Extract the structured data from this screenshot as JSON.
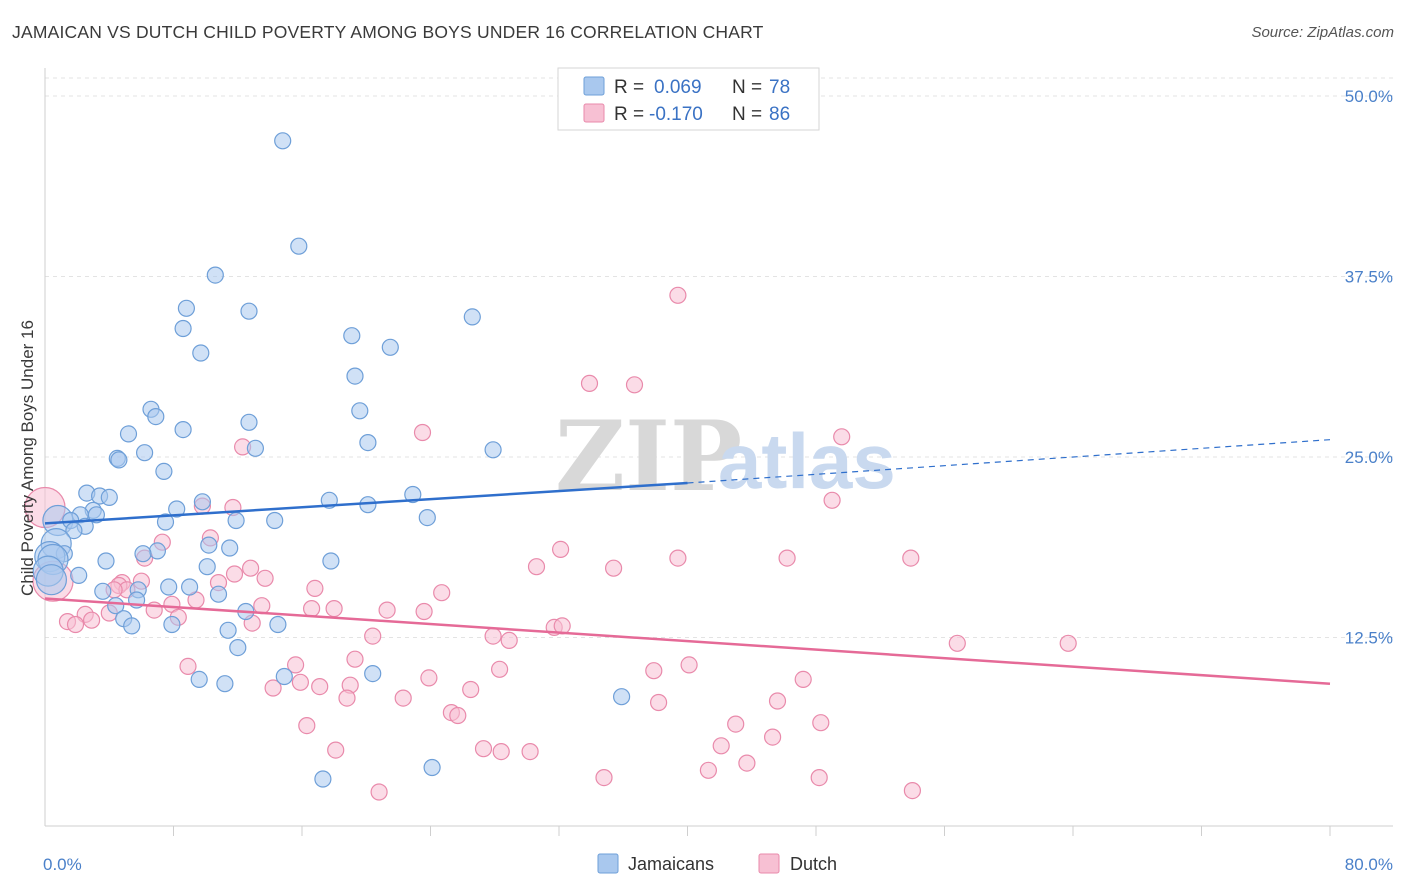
{
  "header": {
    "title": "JAMAICAN VS DUTCH CHILD POVERTY AMONG BOYS UNDER 16 CORRELATION CHART",
    "source": "Source: ZipAtlas.com"
  },
  "watermark": {
    "zip": "ZIP",
    "atlas": "atlas"
  },
  "colors": {
    "jamaicans_fill": "#a9c8ee",
    "jamaicans_stroke": "#6e9fd8",
    "jamaicans_line": "#2f6fcc",
    "dutch_fill": "#f7c0d3",
    "dutch_stroke": "#e98aab",
    "dutch_line": "#e56a97",
    "axis_label": "#4a80c9",
    "grid": "#e3e3e3"
  },
  "legend": {
    "rows": [
      {
        "r_label": "R =",
        "r_value": "0.069",
        "n_label": "N =",
        "n_value": "78"
      },
      {
        "r_label": "R =",
        "r_value": "-0.170",
        "n_label": "N =",
        "n_value": "86"
      }
    ]
  },
  "bottom_legend": {
    "items": [
      "Jamaicans",
      "Dutch"
    ]
  },
  "chart_data": {
    "type": "scatter",
    "title": "JAMAICAN VS DUTCH CHILD POVERTY AMONG BOYS UNDER 16 CORRELATION CHART",
    "xlabel": "",
    "ylabel": "Child Poverty Among Boys Under 16",
    "xlim": [
      0,
      80
    ],
    "ylim": [
      0,
      52
    ],
    "x_tick_labels": [
      "0.0%",
      "80.0%"
    ],
    "y_ticks": [
      12.5,
      25.0,
      37.5,
      50.0
    ],
    "y_tick_labels": [
      "12.5%",
      "25.0%",
      "37.5%",
      "50.0%"
    ],
    "grid": true,
    "series": [
      {
        "name": "Jamaicans",
        "r": 0.069,
        "n": 78,
        "trend": {
          "x": [
            0,
            40
          ],
          "y": [
            20.4,
            23.2
          ],
          "dashed_extension": {
            "x": [
              40,
              80
            ],
            "y": [
              23.2,
              26.2
            ]
          }
        },
        "points": [
          [
            14.8,
            46.9
          ],
          [
            15.8,
            39.6
          ],
          [
            10.6,
            37.6
          ],
          [
            8.8,
            35.3
          ],
          [
            12.7,
            35.1
          ],
          [
            8.6,
            33.9
          ],
          [
            26.6,
            34.7
          ],
          [
            19.1,
            33.4
          ],
          [
            21.5,
            32.6
          ],
          [
            9.7,
            32.2
          ],
          [
            19.3,
            30.6
          ],
          [
            6.6,
            28.3
          ],
          [
            6.9,
            27.8
          ],
          [
            19.6,
            28.2
          ],
          [
            12.7,
            27.4
          ],
          [
            8.6,
            26.9
          ],
          [
            5.2,
            26.6
          ],
          [
            20.1,
            26.0
          ],
          [
            13.1,
            25.6
          ],
          [
            6.2,
            25.3
          ],
          [
            27.9,
            25.5
          ],
          [
            4.5,
            24.9
          ],
          [
            4.6,
            24.8
          ],
          [
            7.4,
            24.0
          ],
          [
            2.6,
            22.5
          ],
          [
            3.4,
            22.3
          ],
          [
            4.0,
            22.2
          ],
          [
            22.9,
            22.4
          ],
          [
            9.8,
            21.9
          ],
          [
            17.7,
            22.0
          ],
          [
            20.1,
            21.7
          ],
          [
            8.2,
            21.4
          ],
          [
            3.0,
            21.3
          ],
          [
            2.2,
            21.0
          ],
          [
            3.2,
            21.0
          ],
          [
            0.8,
            20.6
          ],
          [
            1.6,
            20.6
          ],
          [
            2.5,
            20.2
          ],
          [
            1.8,
            19.9
          ],
          [
            11.9,
            20.6
          ],
          [
            14.3,
            20.6
          ],
          [
            23.8,
            20.8
          ],
          [
            7.5,
            20.5
          ],
          [
            0.7,
            19.0
          ],
          [
            10.2,
            18.9
          ],
          [
            11.5,
            18.7
          ],
          [
            7.0,
            18.5
          ],
          [
            6.1,
            18.3
          ],
          [
            1.2,
            18.3
          ],
          [
            0.3,
            18.1
          ],
          [
            0.5,
            17.9
          ],
          [
            3.8,
            17.8
          ],
          [
            17.8,
            17.8
          ],
          [
            10.1,
            17.4
          ],
          [
            0.2,
            17.1
          ],
          [
            2.1,
            16.8
          ],
          [
            0.4,
            16.5
          ],
          [
            7.7,
            16.0
          ],
          [
            9.0,
            16.0
          ],
          [
            5.8,
            15.8
          ],
          [
            3.6,
            15.7
          ],
          [
            10.8,
            15.5
          ],
          [
            5.7,
            15.1
          ],
          [
            4.4,
            14.7
          ],
          [
            12.5,
            14.3
          ],
          [
            4.9,
            13.8
          ],
          [
            14.5,
            13.4
          ],
          [
            5.4,
            13.3
          ],
          [
            7.9,
            13.4
          ],
          [
            11.4,
            13.0
          ],
          [
            12.0,
            11.8
          ],
          [
            20.4,
            10.0
          ],
          [
            14.9,
            9.8
          ],
          [
            9.6,
            9.6
          ],
          [
            11.2,
            9.3
          ],
          [
            35.9,
            8.4
          ],
          [
            17.3,
            2.7
          ],
          [
            24.1,
            3.5
          ]
        ]
      },
      {
        "name": "Dutch",
        "r": -0.17,
        "n": 86,
        "trend": {
          "x": [
            0,
            80
          ],
          "y": [
            15.2,
            9.3
          ]
        },
        "points": [
          [
            39.4,
            36.2
          ],
          [
            33.9,
            30.1
          ],
          [
            36.7,
            30.0
          ],
          [
            23.5,
            26.7
          ],
          [
            49.6,
            26.4
          ],
          [
            12.3,
            25.7
          ],
          [
            49.0,
            22.0
          ],
          [
            0.0,
            21.5
          ],
          [
            9.8,
            21.6
          ],
          [
            11.7,
            21.5
          ],
          [
            10.3,
            19.4
          ],
          [
            7.3,
            19.1
          ],
          [
            32.1,
            18.6
          ],
          [
            6.2,
            18.0
          ],
          [
            39.4,
            18.0
          ],
          [
            46.2,
            18.0
          ],
          [
            53.9,
            18.0
          ],
          [
            30.6,
            17.4
          ],
          [
            35.4,
            17.3
          ],
          [
            12.8,
            17.3
          ],
          [
            11.8,
            16.9
          ],
          [
            13.7,
            16.6
          ],
          [
            0.5,
            16.4
          ],
          [
            6.0,
            16.4
          ],
          [
            10.8,
            16.3
          ],
          [
            4.8,
            16.3
          ],
          [
            4.6,
            16.1
          ],
          [
            5.1,
            15.8
          ],
          [
            24.7,
            15.6
          ],
          [
            16.8,
            15.9
          ],
          [
            4.3,
            15.8
          ],
          [
            9.4,
            15.1
          ],
          [
            7.9,
            14.8
          ],
          [
            13.5,
            14.7
          ],
          [
            16.6,
            14.5
          ],
          [
            18.0,
            14.5
          ],
          [
            21.3,
            14.4
          ],
          [
            6.8,
            14.4
          ],
          [
            23.6,
            14.3
          ],
          [
            4.0,
            14.2
          ],
          [
            2.5,
            14.1
          ],
          [
            8.3,
            13.9
          ],
          [
            1.4,
            13.6
          ],
          [
            2.9,
            13.7
          ],
          [
            12.9,
            13.5
          ],
          [
            1.9,
            13.4
          ],
          [
            31.7,
            13.2
          ],
          [
            32.2,
            13.3
          ],
          [
            27.9,
            12.6
          ],
          [
            20.4,
            12.6
          ],
          [
            28.9,
            12.3
          ],
          [
            56.8,
            12.1
          ],
          [
            63.7,
            12.1
          ],
          [
            19.3,
            11.0
          ],
          [
            8.9,
            10.5
          ],
          [
            15.6,
            10.6
          ],
          [
            28.3,
            10.3
          ],
          [
            37.9,
            10.2
          ],
          [
            40.1,
            10.6
          ],
          [
            47.2,
            9.6
          ],
          [
            23.9,
            9.7
          ],
          [
            15.9,
            9.4
          ],
          [
            14.2,
            9.0
          ],
          [
            17.1,
            9.1
          ],
          [
            19.0,
            9.2
          ],
          [
            26.5,
            8.9
          ],
          [
            22.3,
            8.3
          ],
          [
            18.8,
            8.3
          ],
          [
            38.2,
            8.0
          ],
          [
            45.6,
            8.1
          ],
          [
            25.3,
            7.3
          ],
          [
            25.7,
            7.1
          ],
          [
            16.3,
            6.4
          ],
          [
            43.0,
            6.5
          ],
          [
            48.3,
            6.6
          ],
          [
            45.3,
            5.6
          ],
          [
            27.3,
            4.8
          ],
          [
            18.1,
            4.7
          ],
          [
            28.4,
            4.6
          ],
          [
            30.2,
            4.6
          ],
          [
            42.1,
            5.0
          ],
          [
            43.7,
            3.8
          ],
          [
            41.3,
            3.3
          ],
          [
            34.8,
            2.8
          ],
          [
            48.2,
            2.8
          ],
          [
            54.0,
            1.9
          ],
          [
            20.8,
            1.8
          ]
        ]
      }
    ]
  }
}
